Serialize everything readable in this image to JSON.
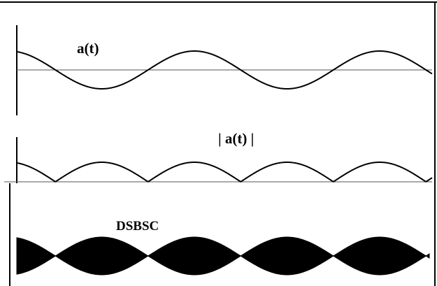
{
  "labels": {
    "signal": "a(t)",
    "rectified": "| a(t) |",
    "modulated": "DSBSC"
  },
  "colors": {
    "ink": "#000000",
    "axis": "#555555",
    "background": "#ffffff"
  }
}
